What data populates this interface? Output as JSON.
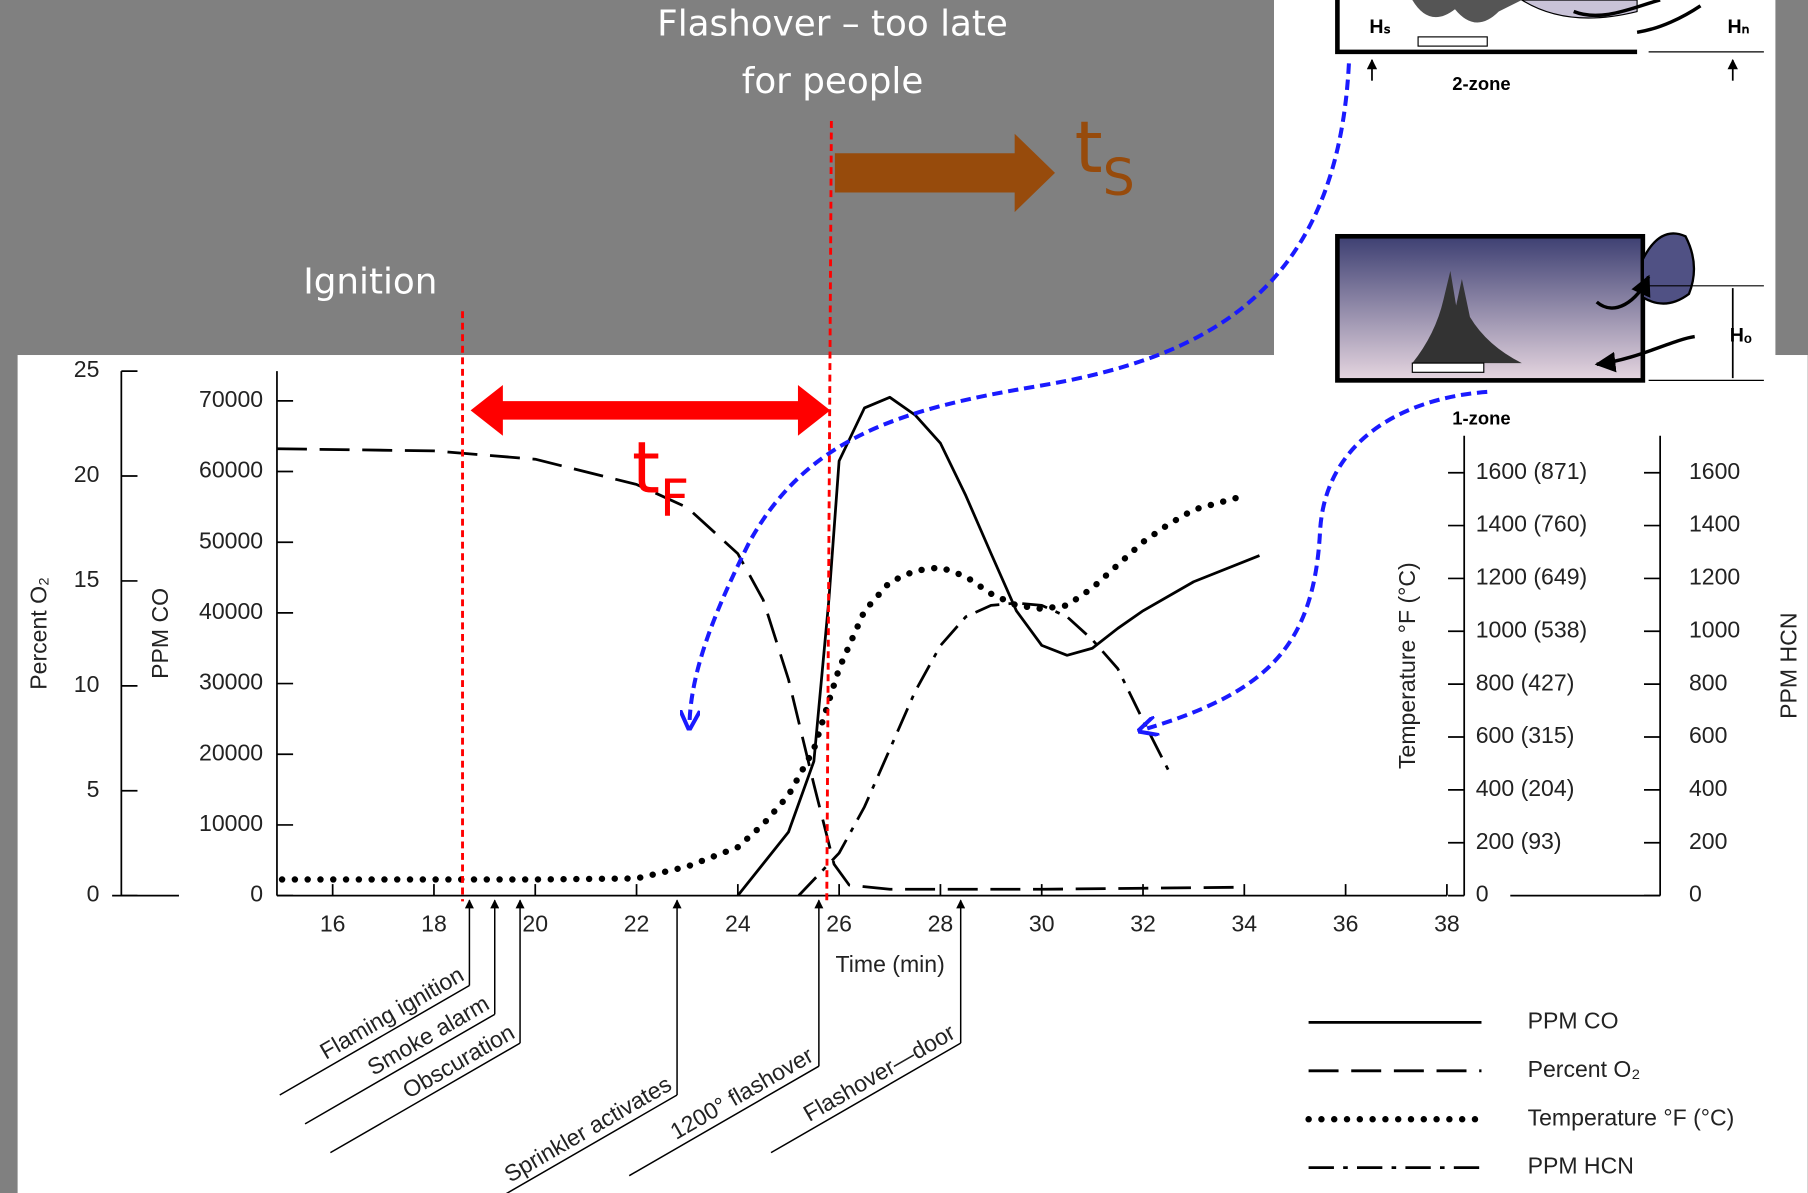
{
  "slide": {
    "flashover_note": [
      "Flashover – too late",
      "for people"
    ],
    "ignition_note": "Ignition",
    "t_f": {
      "text": "t",
      "subscript": "F"
    },
    "t_s": {
      "text": "t",
      "subscript": "S"
    }
  },
  "diagrams": {
    "two_zone": {
      "label": "2-zone",
      "hs": "Hₛ",
      "hn": "Hₙ"
    },
    "one_zone": {
      "label": "1-zone",
      "ho": "Hₒ"
    }
  },
  "chart_data": {
    "type": "line",
    "x_label": "Time (min)",
    "xlim": [
      14.9,
      38
    ],
    "xticks": [
      16,
      18,
      20,
      22,
      24,
      26,
      28,
      30,
      32,
      34,
      36,
      38
    ],
    "y_axes": [
      {
        "label": "Percent O₂",
        "lim": [
          0,
          25
        ],
        "ticks": [
          0,
          5,
          10,
          15,
          20,
          25
        ]
      },
      {
        "label": "PPM CO",
        "lim": [
          0,
          74200
        ],
        "ticks": [
          0,
          10000,
          20000,
          30000,
          40000,
          50000,
          60000,
          70000
        ]
      },
      {
        "label": "Temperature °F (°C)",
        "lim": [
          0,
          1740
        ],
        "ticks": [
          0,
          {
            "value": 200,
            "label": "200 (93)"
          },
          {
            "value": 400,
            "label": "400 (204)"
          },
          {
            "value": 600,
            "label": "600 (315)"
          },
          {
            "value": 800,
            "label": "800 (427)"
          },
          {
            "value": 1000,
            "label": "1000 (538)"
          },
          {
            "value": 1200,
            "label": "1200 (649)"
          },
          {
            "value": 1400,
            "label": "1400 (760)"
          },
          {
            "value": 1600,
            "label": "1600 (871)"
          }
        ]
      },
      {
        "label": "PPM HCN",
        "lim": [
          0,
          1740
        ],
        "ticks": [
          0,
          200,
          400,
          600,
          800,
          1000,
          1200,
          1400,
          1600
        ]
      }
    ],
    "series": [
      {
        "name": "PPM CO",
        "color": "#000000",
        "style": "solid",
        "axis": 1,
        "x": [
          24,
          25,
          25.5,
          25.8,
          26,
          26.5,
          27,
          27.5,
          28,
          28.5,
          29,
          29.5,
          30,
          30.5,
          31,
          31.5,
          32,
          33,
          34.3
        ],
        "values": [
          0,
          9000,
          19000,
          42000,
          61500,
          69000,
          70500,
          68000,
          64000,
          56600,
          48400,
          40300,
          35400,
          34000,
          35000,
          37800,
          40300,
          44400,
          48100
        ]
      },
      {
        "name": "Percent O₂",
        "color": "#000000",
        "style": "dashed",
        "axis": 0,
        "x": [
          14.9,
          18,
          20,
          22,
          23,
          24,
          24.5,
          25,
          25.5,
          25.9,
          26.2,
          27,
          30,
          34
        ],
        "values": [
          21.3,
          21.2,
          20.8,
          19.6,
          18.5,
          16.3,
          14.1,
          10.3,
          5.3,
          1.5,
          0.5,
          0.3,
          0.3,
          0.4
        ]
      },
      {
        "name": "Temperature °F (°C)",
        "color": "#000000",
        "style": "dotted",
        "axis": 2,
        "x": [
          15,
          18,
          20,
          22,
          23,
          24,
          24.5,
          25,
          25.5,
          26,
          26.5,
          27,
          27.5,
          28,
          28.5,
          29,
          29.5,
          30,
          30.5,
          31,
          31.5,
          32,
          32.5,
          33,
          34
        ],
        "values": [
          61,
          61,
          61,
          65,
          110,
          183,
          270,
          380,
          554,
          859,
          1077,
          1186,
          1229,
          1242,
          1207,
          1142,
          1098,
          1085,
          1098,
          1164,
          1251,
          1338,
          1404,
          1460,
          1513
        ]
      },
      {
        "name": "PPM HCN",
        "color": "#000000",
        "style": "dashdot",
        "axis": 3,
        "x": [
          25.2,
          26,
          26.5,
          27,
          27.5,
          28,
          28.5,
          29,
          29.5,
          30,
          30.5,
          31,
          31.5,
          32,
          32.5
        ],
        "values": [
          0,
          161,
          336,
          554,
          772,
          946,
          1055,
          1098,
          1107,
          1098,
          1055,
          968,
          859,
          663,
          475
        ]
      }
    ],
    "events": [
      {
        "label": "Flaming ignition",
        "x": 18.7
      },
      {
        "label": "Smoke alarm",
        "x": 19.2
      },
      {
        "label": "Obscuration",
        "x": 19.7
      },
      {
        "label": "Sprinkler activates",
        "x": 22.8
      },
      {
        "label": "1200° flashover",
        "x": 25.6
      },
      {
        "label": "Flashover—door",
        "x": 28.4
      }
    ],
    "legend_position": "bottom-right"
  }
}
